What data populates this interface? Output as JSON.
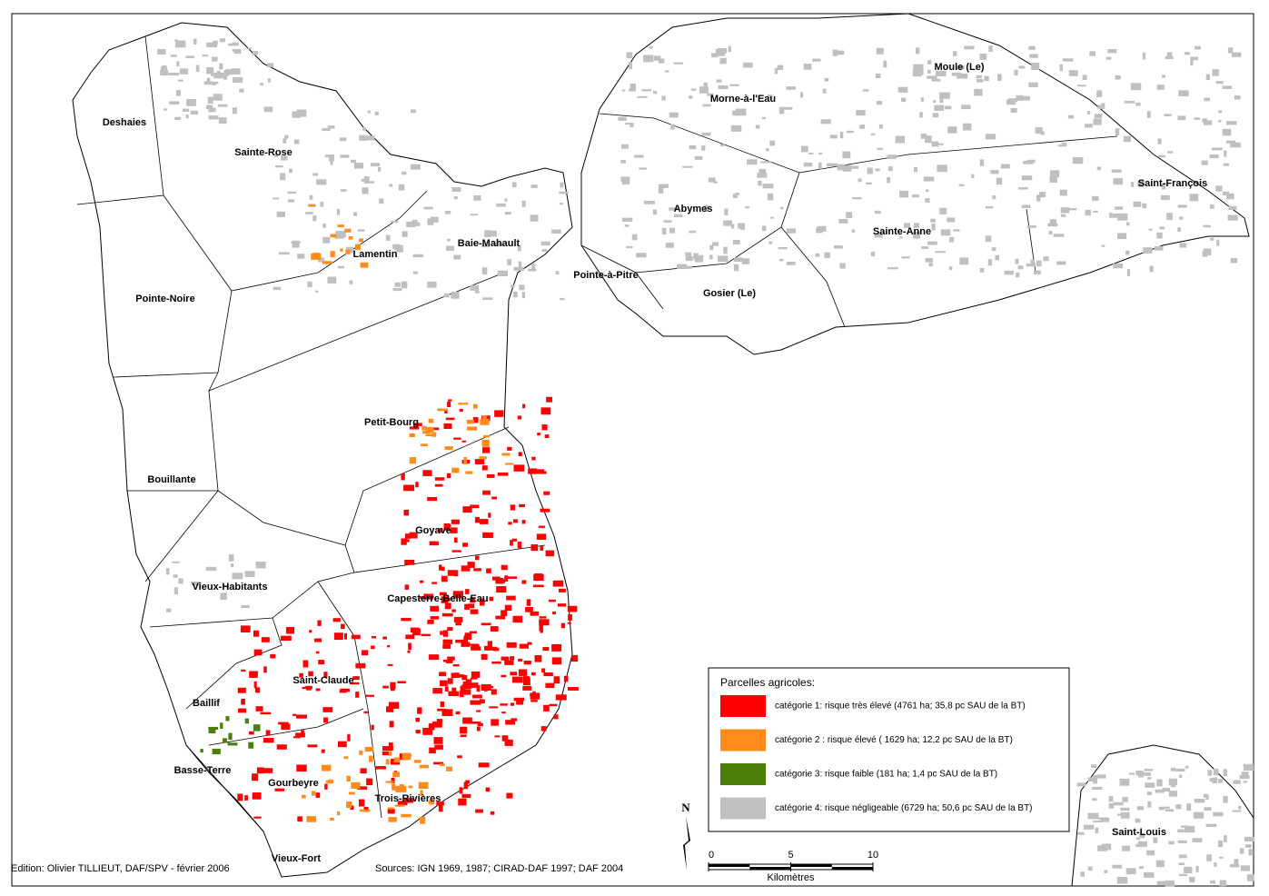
{
  "communes": [
    "Deshaies",
    "Sainte-Rose",
    "Lamentin",
    "Baie-Mahault",
    "Pointe-Noire",
    "Petit-Bourg",
    "Bouillante",
    "Goyave",
    "Vieux-Habitants",
    "Capesterre-Belle-Eau",
    "Saint-Claude",
    "Baillif",
    "Basse-Terre",
    "Gourbeyre",
    "Trois-Rivières",
    "Vieux-Fort",
    "Morne-à-l'Eau",
    "Moule (Le)",
    "Abymes",
    "Saint-François",
    "Sainte-Anne",
    "Pointe-à-Pitre",
    "Gosier (Le)",
    "Saint-Louis"
  ],
  "legend": {
    "title": "Parcelles agricoles:",
    "items": [
      {
        "label": "catégorie 1: risque très élevé (4761 ha; 35,8 pc SAU de la BT)",
        "color": "#ff0000"
      },
      {
        "label": "catégorie 2 : risque élevé ( 1629 ha; 12,2 pc SAU de la BT)",
        "color": "#ff8c1a"
      },
      {
        "label": "catégorie 3: risque faible (181 ha; 1,4 pc SAU de la BT)",
        "color": "#4a7f0a"
      },
      {
        "label": "catégorie 4: risque négligeable (6729 ha; 50,6 pc SAU de la BT)",
        "color": "#c0c0c0"
      }
    ]
  },
  "credits": {
    "edition": "Edition: Olivier TILLIEUT, DAF/SPV - février 2006",
    "sources": "Sources: IGN 1969, 1987; CIRAD-DAF 1997; DAF 2004"
  },
  "north": "N",
  "scale_bar": {
    "ticks": [
      0,
      5,
      10
    ],
    "unit": "Kilomètres"
  }
}
